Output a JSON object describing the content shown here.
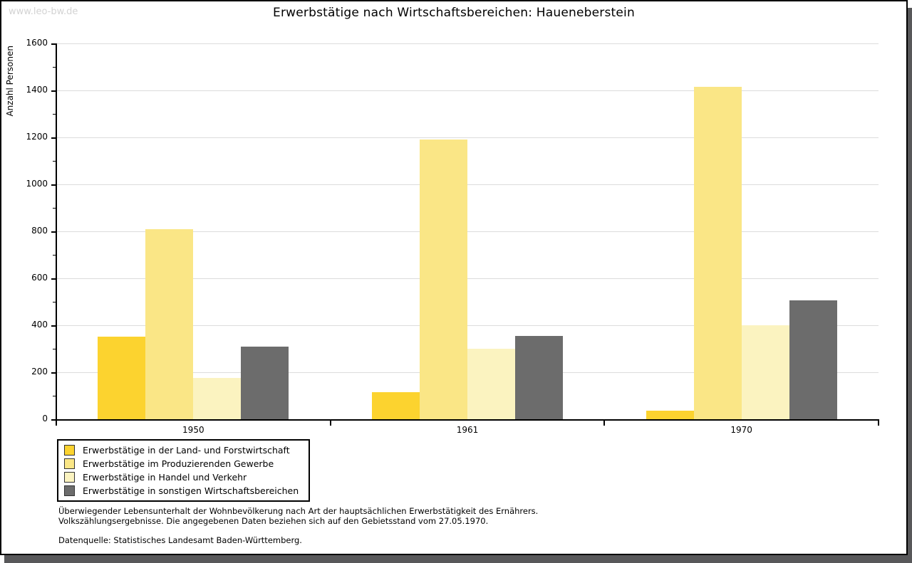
{
  "watermark": "www.leo-bw.de",
  "title": "Erwerbstätige nach Wirtschaftsbereichen: Haueneberstein",
  "chart_data": {
    "type": "bar",
    "title": "Erwerbstätige nach Wirtschaftsbereichen: Haueneberstein",
    "xlabel": "",
    "ylabel": "Anzahl Personen",
    "categories": [
      "1950",
      "1961",
      "1970"
    ],
    "series": [
      {
        "name": "Erwerbstätige in der Land- und Forstwirtschaft",
        "color": "#FCD32F",
        "values": [
          350,
          115,
          35
        ]
      },
      {
        "name": "Erwerbstätige im Produzierenden Gewerbe",
        "color": "#FAE686",
        "values": [
          810,
          1190,
          1415
        ]
      },
      {
        "name": "Erwerbstätige in Handel und Verkehr",
        "color": "#FBF3C0",
        "values": [
          175,
          300,
          400
        ]
      },
      {
        "name": "Erwerbstätige in sonstigen Wirtschaftsbereichen",
        "color": "#6C6C6C",
        "values": [
          310,
          355,
          505
        ]
      }
    ],
    "ylim": [
      0,
      1600
    ],
    "yticks": [
      0,
      200,
      400,
      600,
      800,
      1000,
      1200,
      1400,
      1600
    ],
    "ytick_minor_step": 100,
    "grid": true,
    "legend_position": "bottom-left",
    "colors": {
      "gridline": "#dcdcdc",
      "axis": "#000000",
      "shadow": "#58585a",
      "watermark": "#d3d3d3"
    }
  },
  "notes": {
    "line1": "Überwiegender Lebensunterhalt der Wohnbevölkerung nach Art der hauptsächlichen Erwerbstätigkeit des Ernährers.",
    "line2": "Volkszählungsergebnisse. Die angegebenen Daten beziehen sich auf den Gebietsstand vom 27.05.1970."
  },
  "source": "Datenquelle: Statistisches Landesamt Baden-Württemberg."
}
